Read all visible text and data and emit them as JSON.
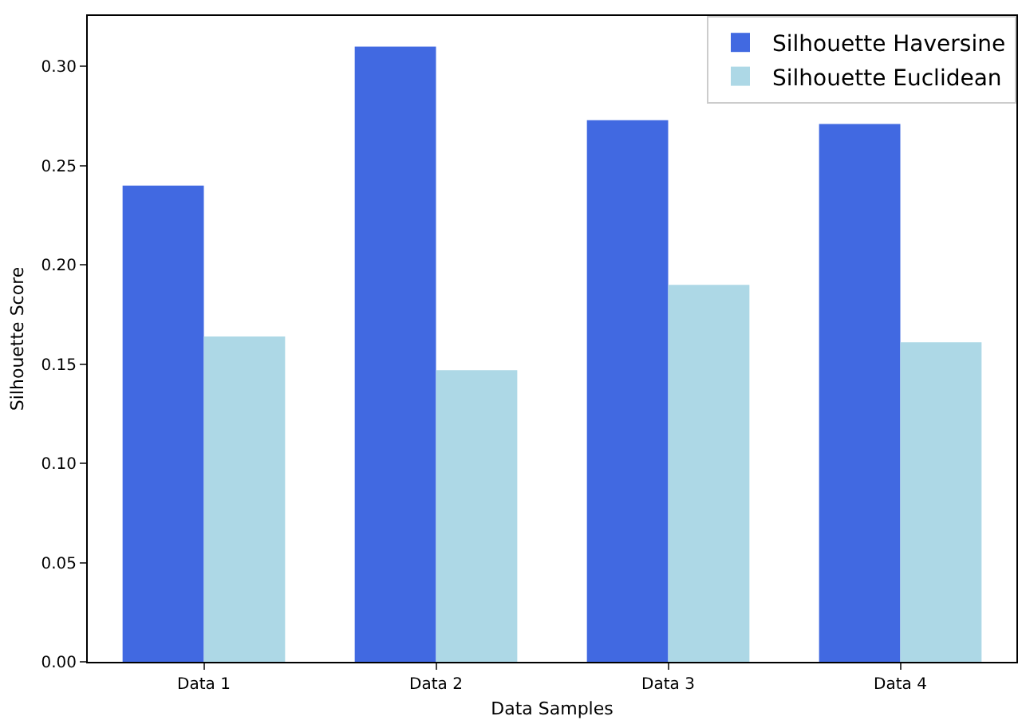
{
  "chart_data": {
    "type": "bar",
    "xlabel": "Data Samples",
    "ylabel": "Silhouette Score",
    "categories": [
      "Data 1",
      "Data 2",
      "Data 3",
      "Data 4"
    ],
    "series": [
      {
        "name": "Silhouette Haversine",
        "color": "#4169e1",
        "values": [
          0.24,
          0.31,
          0.273,
          0.271
        ]
      },
      {
        "name": "Silhouette Euclidean",
        "color": "#add8e6",
        "values": [
          0.164,
          0.147,
          0.19,
          0.161
        ]
      }
    ],
    "ylim": [
      0,
      0.3255
    ],
    "yticks": [
      {
        "value": 0,
        "label": "0.00"
      },
      {
        "value": 0.05,
        "label": "0.05"
      },
      {
        "value": 0.1,
        "label": "0.10"
      },
      {
        "value": 0.15,
        "label": "0.15"
      },
      {
        "value": 0.2,
        "label": "0.20"
      },
      {
        "value": 0.25,
        "label": "0.25"
      },
      {
        "value": 0.3,
        "label": "0.30"
      }
    ],
    "grid": false,
    "legend": "top right"
  }
}
